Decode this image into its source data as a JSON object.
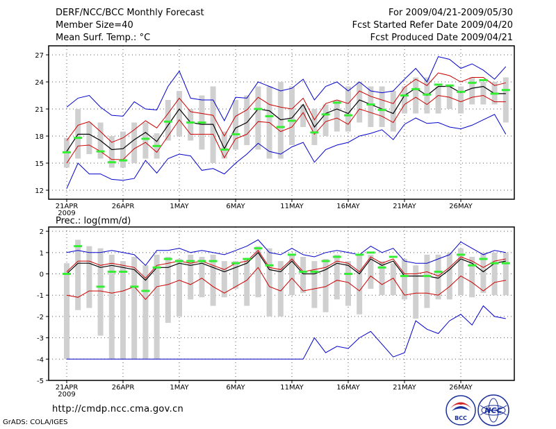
{
  "header": {
    "title": "DERF/NCC/BCC Monthly Forecast",
    "member_size": "Member Size=40",
    "variable": "Mean Surf. Temp.: °C",
    "period": "For 2009/04/21-2009/05/30",
    "start_date": "Fcst Started Refer Date 2009/04/20",
    "produced_date": "Fcst Produced Date 2009/04/21"
  },
  "precip_label": "Prec.: log(mm/d)",
  "footer": {
    "url": "http://cmdp.ncc.cma.gov.cn",
    "grads": "GrADS: COLA/IGES"
  },
  "logos": {
    "bcc": "BCC",
    "ncc": "NCC"
  },
  "colors": {
    "mean": "#000000",
    "spread": "#cc0000",
    "extreme": "#0000cc",
    "box": "#d0d0d0",
    "obs": "#33ee33"
  },
  "chart_data": [
    {
      "type": "line",
      "title": "Mean Surf. Temp.: °C",
      "x_ticks": [
        "21APR",
        "26APR",
        "1MAY",
        "6MAY",
        "11MAY",
        "16MAY",
        "21MAY",
        "26MAY"
      ],
      "x_year": "2009",
      "ylim": [
        11,
        28
      ],
      "y_ticks": [
        12,
        15,
        18,
        21,
        24,
        27
      ],
      "mean": [
        16.3,
        18.2,
        18.2,
        17.5,
        16.5,
        16.6,
        17.6,
        18.4,
        17.4,
        19.2,
        21.0,
        19.5,
        19.3,
        19.3,
        16.6,
        18.9,
        19.5,
        21.0,
        20.8,
        19.8,
        20.0,
        21.5,
        19.0,
        20.5,
        21.0,
        20.5,
        22.0,
        21.5,
        21.0,
        20.5,
        22.5,
        23.3,
        22.5,
        23.5,
        23.5,
        22.8,
        23.3,
        23.5,
        22.7,
        22.7
      ],
      "upper": [
        17.5,
        19.2,
        19.6,
        18.5,
        17.3,
        17.8,
        18.7,
        19.7,
        18.9,
        20.5,
        22.2,
        20.7,
        20.5,
        20.3,
        18.0,
        20.2,
        20.9,
        22.3,
        21.5,
        21.2,
        21.0,
        22.2,
        19.8,
        21.6,
        22.0,
        21.6,
        23.0,
        22.4,
        22.0,
        21.6,
        23.4,
        24.3,
        23.6,
        25.0,
        24.7,
        24.0,
        24.5,
        24.5,
        23.6,
        23.9
      ],
      "lower": [
        15.0,
        16.9,
        17.0,
        16.3,
        15.4,
        15.4,
        16.6,
        17.3,
        16.2,
        18.0,
        19.8,
        18.2,
        18.2,
        18.2,
        15.6,
        17.7,
        18.2,
        19.6,
        19.5,
        18.5,
        19.0,
        20.6,
        18.2,
        19.6,
        20.0,
        19.3,
        21.0,
        20.6,
        20.2,
        19.5,
        21.5,
        22.3,
        21.5,
        22.5,
        22.3,
        21.8,
        22.3,
        22.5,
        21.8,
        21.8
      ],
      "max": [
        21.2,
        22.2,
        22.5,
        21.2,
        20.3,
        20.2,
        21.8,
        21.0,
        20.9,
        23.5,
        25.2,
        22.2,
        22.0,
        22.0,
        19.7,
        22.3,
        22.2,
        24.0,
        23.5,
        23.0,
        23.3,
        24.3,
        22.0,
        23.5,
        24.0,
        23.0,
        24.0,
        23.0,
        22.8,
        23.0,
        24.3,
        25.5,
        24.0,
        26.8,
        26.5,
        25.5,
        26.0,
        25.3,
        24.3,
        25.7
      ],
      "min": [
        12.2,
        15.0,
        13.8,
        13.8,
        13.2,
        13.1,
        13.3,
        15.3,
        13.9,
        15.5,
        16.0,
        15.8,
        14.2,
        14.4,
        13.8,
        15.0,
        16.0,
        17.2,
        16.3,
        16.0,
        16.8,
        17.3,
        15.1,
        16.5,
        17.0,
        17.3,
        18.0,
        18.3,
        18.7,
        17.6,
        19.3,
        20.0,
        19.4,
        19.5,
        19.0,
        18.8,
        19.2,
        19.8,
        20.4,
        18.2
      ],
      "box_top": [
        17.8,
        21.0,
        19.5,
        19.5,
        18.0,
        18.5,
        19.5,
        19.5,
        18.3,
        22.0,
        23.0,
        21.0,
        22.5,
        23.5,
        18.5,
        22.0,
        22.5,
        23.5,
        23.5,
        24.0,
        23.5,
        21.5,
        21.0,
        21.5,
        22.0,
        23.5,
        24.0,
        23.5,
        23.5,
        23.0,
        23.5,
        24.5,
        24.5,
        23.5,
        23.5,
        23.5,
        24.5,
        24.0,
        24.0,
        24.5
      ],
      "box_bottom": [
        14.5,
        15.5,
        16.0,
        15.5,
        14.5,
        14.5,
        15.0,
        15.5,
        15.5,
        17.5,
        18.0,
        17.5,
        16.5,
        15.0,
        15.5,
        16.5,
        17.0,
        16.5,
        15.5,
        15.5,
        17.0,
        19.0,
        17.0,
        18.0,
        18.5,
        18.5,
        19.5,
        19.0,
        19.0,
        18.5,
        20.5,
        20.5,
        20.5,
        20.5,
        21.0,
        20.5,
        21.5,
        21.5,
        21.5,
        19.5
      ],
      "observed": [
        16.2,
        17.8,
        null,
        16.3,
        15.1,
        15.3,
        null,
        17.7,
        16.9,
        19.6,
        null,
        19.5,
        19.5,
        null,
        16.5,
        18.2,
        null,
        21.0,
        20.2,
        19.0,
        19.7,
        null,
        18.4,
        20.4,
        21.7,
        20.3,
        null,
        21.5,
        20.9,
        null,
        22.5,
        23.2,
        22.6,
        23.7,
        23.6,
        22.9,
        23.9,
        24.2,
        22.7,
        23.1
      ]
    },
    {
      "type": "line",
      "title": "Prec.: log(mm/d)",
      "x_ticks": [
        "21APR",
        "26APR",
        "1MAY",
        "6MAY",
        "11MAY",
        "16MAY",
        "21MAY",
        "26MAY"
      ],
      "x_year": "2009",
      "ylim": [
        -5,
        2.2
      ],
      "y_ticks": [
        -5,
        -4,
        -3,
        -2,
        -1,
        0,
        1,
        2
      ],
      "mean": [
        0.0,
        0.5,
        0.5,
        0.3,
        0.4,
        0.3,
        0.2,
        -0.3,
        0.3,
        0.3,
        0.5,
        0.4,
        0.5,
        0.3,
        0.1,
        0.3,
        0.5,
        1.0,
        0.2,
        0.1,
        0.6,
        0.0,
        0.0,
        0.2,
        0.5,
        0.4,
        0.0,
        0.7,
        0.4,
        0.6,
        -0.1,
        -0.1,
        -0.1,
        -0.2,
        0.2,
        0.7,
        0.5,
        0.1,
        0.5,
        0.6
      ],
      "upper": [
        0.1,
        0.6,
        0.6,
        0.4,
        0.5,
        0.4,
        0.3,
        -0.2,
        0.4,
        0.5,
        0.6,
        0.5,
        0.6,
        0.4,
        0.2,
        0.5,
        0.6,
        1.1,
        0.3,
        0.2,
        0.7,
        0.1,
        0.2,
        0.3,
        0.6,
        0.5,
        0.1,
        0.8,
        0.5,
        0.7,
        0.0,
        0.0,
        0.1,
        -0.1,
        0.3,
        0.8,
        0.6,
        0.3,
        0.6,
        0.7
      ],
      "lower": [
        -1.0,
        -1.1,
        -0.8,
        -0.8,
        -0.9,
        -0.8,
        -0.6,
        -1.2,
        -0.6,
        -0.5,
        -0.3,
        -0.5,
        -0.2,
        -0.6,
        -0.9,
        -0.6,
        -0.3,
        0.3,
        -0.6,
        -0.8,
        -0.2,
        -0.8,
        -0.7,
        -0.6,
        -0.3,
        -0.4,
        -0.8,
        -0.1,
        -0.5,
        -0.2,
        -1.0,
        -0.9,
        -0.9,
        -1.0,
        -0.6,
        -0.1,
        -0.4,
        -0.8,
        -0.4,
        -0.3
      ],
      "max": [
        1.0,
        1.1,
        1.0,
        1.0,
        1.1,
        1.0,
        0.9,
        0.4,
        1.1,
        1.1,
        1.2,
        1.0,
        1.1,
        1.0,
        0.9,
        1.1,
        1.3,
        1.6,
        1.0,
        0.9,
        1.2,
        0.9,
        0.8,
        1.0,
        1.1,
        1.0,
        0.9,
        1.3,
        1.0,
        1.2,
        0.6,
        0.5,
        0.5,
        0.7,
        0.9,
        1.5,
        1.2,
        0.9,
        1.1,
        1.0
      ],
      "min": [
        -4.0,
        -4.0,
        -4.0,
        -4.0,
        -4.0,
        -4.0,
        -4.0,
        -4.0,
        -4.0,
        -4.0,
        -4.0,
        -4.0,
        -4.0,
        -4.0,
        -4.0,
        -4.0,
        -4.0,
        -4.0,
        -4.0,
        -4.0,
        -4.0,
        -4.0,
        -3.0,
        -3.7,
        -3.4,
        -3.5,
        -3.0,
        -2.7,
        -3.3,
        -3.9,
        -3.7,
        -2.2,
        -2.6,
        -2.8,
        -2.2,
        -1.9,
        -2.4,
        -1.5,
        -2.0,
        -2.1
      ],
      "box_top": [
        0.5,
        1.6,
        1.3,
        1.2,
        0.9,
        0.6,
        0.8,
        0.4,
        0.9,
        0.8,
        0.7,
        0.9,
        0.8,
        0.9,
        0.6,
        0.6,
        0.7,
        1.3,
        1.2,
        0.6,
        0.9,
        0.8,
        0.6,
        0.7,
        0.9,
        0.6,
        0.9,
        0.9,
        0.6,
        0.5,
        0.7,
        0.4,
        0.9,
        0.9,
        1.0,
        1.2,
        0.8,
        1.0,
        1.0,
        1.0
      ],
      "box_bottom": [
        -4.0,
        -1.7,
        -1.6,
        -2.9,
        -4.0,
        -4.0,
        -4.0,
        -4.0,
        -4.0,
        -2.3,
        -2.0,
        -1.2,
        -1.1,
        -1.5,
        -1.1,
        -0.7,
        -1.5,
        -1.1,
        -2.0,
        -2.0,
        -1.0,
        -0.9,
        -1.6,
        -1.8,
        -1.2,
        -1.5,
        -1.9,
        -0.7,
        -1.0,
        -1.0,
        -1.2,
        -2.1,
        -1.6,
        -1.2,
        -1.2,
        -1.0,
        -1.1,
        -0.9,
        -1.0,
        -1.0
      ],
      "observed": [
        0.0,
        1.3,
        null,
        -0.6,
        0.1,
        0.1,
        -0.6,
        -0.8,
        0.3,
        0.7,
        0.6,
        0.6,
        0.6,
        0.6,
        null,
        0.5,
        0.7,
        1.2,
        0.4,
        null,
        0.9,
        0.1,
        0.1,
        0.6,
        0.8,
        0.0,
        0.9,
        1.0,
        0.3,
        0.8,
        -0.1,
        null,
        -0.1,
        0.1,
        null,
        0.9,
        0.4,
        0.7,
        0.5,
        0.5
      ]
    }
  ]
}
